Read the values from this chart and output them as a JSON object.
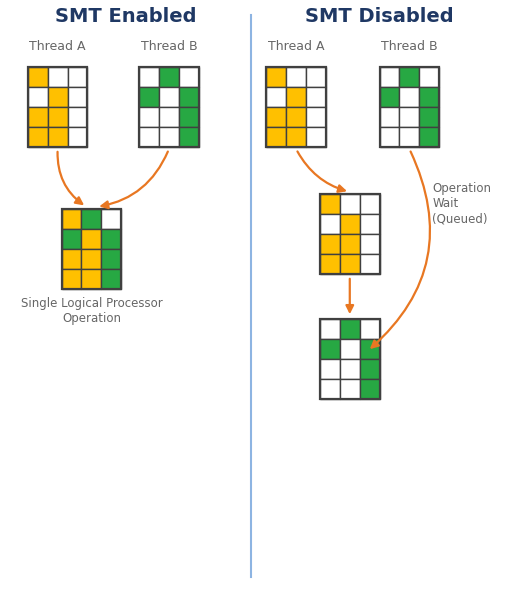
{
  "title_left": "SMT Enabled",
  "title_right": "SMT Disabled",
  "title_color": "#1F3864",
  "title_fontsize": 14,
  "label_color": "#666666",
  "yellow": "#FFC000",
  "green": "#27A843",
  "white": "#FFFFFF",
  "border_color": "#404040",
  "arrow_color": "#E87722",
  "divider_color": "#8DB4E2",
  "bg_color": "#FFFFFF",
  "en_A_grid": [
    [
      "Y",
      "W",
      "W"
    ],
    [
      "W",
      "Y",
      "W"
    ],
    [
      "Y",
      "Y",
      "W"
    ],
    [
      "Y",
      "Y",
      "W"
    ]
  ],
  "en_B_grid": [
    [
      "W",
      "G",
      "W"
    ],
    [
      "G",
      "W",
      "G"
    ],
    [
      "W",
      "W",
      "G"
    ],
    [
      "W",
      "W",
      "G"
    ]
  ],
  "en_merged_grid": [
    [
      "Y",
      "G",
      "W"
    ],
    [
      "G",
      "Y",
      "G"
    ],
    [
      "Y",
      "Y",
      "G"
    ],
    [
      "Y",
      "Y",
      "G"
    ]
  ],
  "dis_A_grid": [
    [
      "Y",
      "W",
      "W"
    ],
    [
      "W",
      "Y",
      "W"
    ],
    [
      "Y",
      "Y",
      "W"
    ],
    [
      "Y",
      "Y",
      "W"
    ]
  ],
  "dis_B_grid": [
    [
      "W",
      "G",
      "W"
    ],
    [
      "G",
      "W",
      "G"
    ],
    [
      "W",
      "W",
      "G"
    ],
    [
      "W",
      "W",
      "G"
    ]
  ],
  "dis_q1_grid": [
    [
      "Y",
      "W",
      "W"
    ],
    [
      "W",
      "Y",
      "W"
    ],
    [
      "Y",
      "Y",
      "W"
    ],
    [
      "Y",
      "Y",
      "W"
    ]
  ],
  "dis_q2_grid": [
    [
      "W",
      "G",
      "W"
    ],
    [
      "G",
      "W",
      "G"
    ],
    [
      "W",
      "W",
      "G"
    ],
    [
      "W",
      "W",
      "G"
    ]
  ]
}
